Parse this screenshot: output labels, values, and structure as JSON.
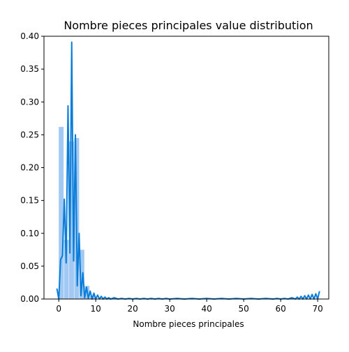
{
  "chart_data": {
    "type": "bar",
    "title": "Nombre pieces principales value distribution",
    "xlabel": "Nombre pieces principales",
    "ylabel": "",
    "xlim": [
      -4,
      73
    ],
    "ylim": [
      0,
      0.4
    ],
    "x_ticks": [
      0,
      10,
      20,
      30,
      40,
      50,
      60,
      70
    ],
    "y_ticks": [
      0.0,
      0.05,
      0.1,
      0.15,
      0.2,
      0.25,
      0.3,
      0.35,
      0.4
    ],
    "x_tick_labels": [
      "0",
      "10",
      "20",
      "30",
      "40",
      "50",
      "60",
      "70"
    ],
    "y_tick_labels": [
      "0.00",
      "0.05",
      "0.10",
      "0.15",
      "0.20",
      "0.25",
      "0.30",
      "0.35",
      "0.40"
    ],
    "grid": false,
    "colors": {
      "bar_fill": "#a1c9f4",
      "line": "#0a7dd9"
    },
    "histogram": {
      "bin_edges": [
        0,
        1.4,
        2.8,
        4.2,
        5.6,
        7.0,
        8.4,
        9.8
      ],
      "values": [
        0.262,
        0.09,
        0.24,
        0.245,
        0.075,
        0.02,
        0.005
      ]
    },
    "kde_line": {
      "x": [
        -0.5,
        0.0,
        0.5,
        1.0,
        1.5,
        2.0,
        2.5,
        3.0,
        3.5,
        4.0,
        4.5,
        5.0,
        5.5,
        6.0,
        6.5,
        7.0,
        7.5,
        8.0,
        8.5,
        9.0,
        9.5,
        10.0,
        10.5,
        11.0,
        11.5,
        12.0,
        12.5,
        13.0,
        13.5,
        14.0,
        15.0,
        16.0,
        17.0,
        18.0,
        19.0,
        20.0,
        21.0,
        22.0,
        23.0,
        24.0,
        25.0,
        26.0,
        27.0,
        28.0,
        29.0,
        30.0,
        32.0,
        34.0,
        36.0,
        38.0,
        40.0,
        42.0,
        44.0,
        46.0,
        48.0,
        50.0,
        52.0,
        54.0,
        56.0,
        58.0,
        59.0,
        60.0,
        61.0,
        62.0,
        63.0,
        64.0,
        64.5,
        65.0,
        65.5,
        66.0,
        66.5,
        67.0,
        67.5,
        68.0,
        68.5,
        69.0,
        69.5,
        70.0,
        70.5
      ],
      "y": [
        0.016,
        0.0,
        0.06,
        0.066,
        0.152,
        0.055,
        0.294,
        0.07,
        0.391,
        0.058,
        0.25,
        0.02,
        0.1,
        0.005,
        0.04,
        0.002,
        0.018,
        0.001,
        0.012,
        0.0,
        0.009,
        0.0,
        0.006,
        0.0,
        0.004,
        0.0,
        0.003,
        0.0,
        0.002,
        0.0,
        0.002,
        0.0,
        0.001,
        0.0,
        0.001,
        0.0,
        0.001,
        0.0,
        0.001,
        0.0,
        0.001,
        0.0,
        0.001,
        0.0,
        0.001,
        0.0,
        0.001,
        0.0,
        0.001,
        0.0,
        0.001,
        0.0,
        0.001,
        0.0,
        0.001,
        0.0,
        0.001,
        0.0,
        0.001,
        0.0,
        0.001,
        0.0,
        0.001,
        0.0,
        0.002,
        0.0,
        0.003,
        0.0,
        0.004,
        0.0,
        0.005,
        0.0,
        0.006,
        0.0,
        0.007,
        0.0,
        0.008,
        0.0,
        0.012
      ]
    }
  }
}
